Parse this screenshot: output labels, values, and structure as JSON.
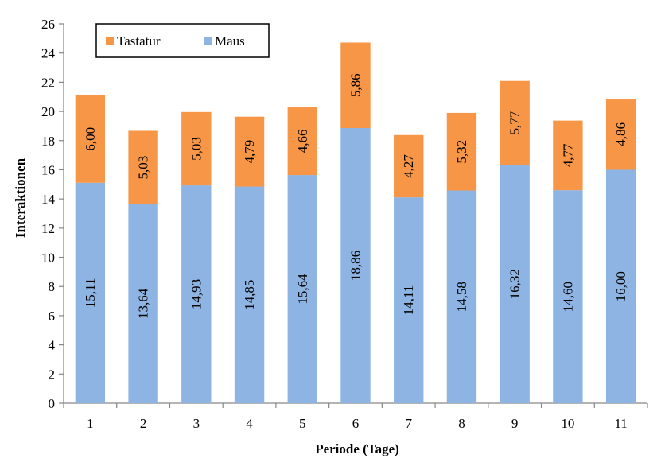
{
  "chart_data": {
    "type": "bar",
    "stacked": true,
    "title": "",
    "xlabel": "Periode (Tage)",
    "ylabel": "Interaktionen",
    "ylim": [
      0,
      26
    ],
    "ytick_step": 2,
    "categories": [
      "1",
      "2",
      "3",
      "4",
      "5",
      "6",
      "7",
      "8",
      "9",
      "10",
      "11"
    ],
    "series": [
      {
        "name": "Maus",
        "color": "#8EB4E3",
        "values": [
          15.11,
          13.64,
          14.93,
          14.85,
          15.64,
          18.86,
          14.11,
          14.58,
          16.32,
          14.6,
          16.0
        ],
        "labels": [
          "15,11",
          "13,64",
          "14,93",
          "14,85",
          "15,64",
          "18,86",
          "14,11",
          "14,58",
          "16,32",
          "14,60",
          "16,00"
        ]
      },
      {
        "name": "Tastatur",
        "color": "#F79646",
        "values": [
          6.0,
          5.03,
          5.03,
          4.79,
          4.66,
          5.86,
          4.27,
          5.32,
          5.77,
          4.77,
          4.86
        ],
        "labels": [
          "6,00",
          "5,03",
          "5,03",
          "4,79",
          "4,66",
          "5,86",
          "4,27",
          "5,32",
          "5,77",
          "4,77",
          "4,86"
        ]
      }
    ],
    "legend": {
      "position": "top-left",
      "order": [
        "Tastatur",
        "Maus"
      ]
    },
    "grid": false
  }
}
